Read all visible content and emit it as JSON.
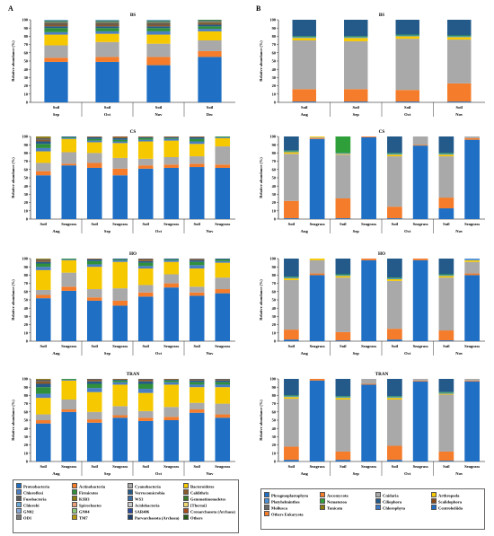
{
  "panel_letters": [
    "A",
    "B"
  ],
  "axis_ylabel": "Relative abundance (%)",
  "yticks": [
    0,
    10,
    20,
    30,
    40,
    50,
    60,
    70,
    80,
    90,
    100
  ],
  "colors_A": [
    "#1f6fc4",
    "#f47c2a",
    "#a9a9a9",
    "#f6c800",
    "#4a7fc4",
    "#2f8f3a",
    "#245a8a",
    "#8a5a2a",
    "#5a5a5a",
    "#8a7a10",
    "#3a6ea8",
    "#3a7a2a",
    "#6aa8d8",
    "#e9a07a",
    "#c8c8c8",
    "#f0d870",
    "#86a8d8",
    "#8cc878",
    "#2848a0",
    "#a84c1c",
    "#7a7a7a",
    "#b89810",
    "#1a4070",
    "#2a5a18"
  ],
  "colors_B": [
    "#1f6fc4",
    "#f47c2a",
    "#a9a9a9",
    "#f6c800",
    "#4a8fd8",
    "#2f9f3a",
    "#245a8a",
    "#8a4a1a",
    "#6a6a6a",
    "#8a7a10",
    "#3a78c8"
  ],
  "legend_A": {
    "items": [
      "Proteobacteria",
      "Actinobacteria",
      "Cyanobacteria",
      "Bacteroidetes",
      "Chloroflexi",
      "Firmicutes",
      "Verrucomicrobia",
      "Caldithrix",
      "Fusobacteria",
      "KSB3",
      "WS3",
      "Gemmatimonadetes",
      "Chlorobi",
      "Spirochaetes",
      "Acidobacteria",
      "[Thermi]",
      "GN02",
      "GN04",
      "SAR406",
      "Crenarchaeota (Archaea)",
      "OD1",
      "TM7",
      "Parvarchaeota (Archaea)",
      "Others"
    ]
  },
  "legend_B": {
    "items": [
      "Phragmoplastophyta",
      "Ascomycota",
      "Cnidaria",
      "Arthropoda",
      "Platyhelminthes",
      "Nematozoa",
      "Ciliophora",
      "Scalidophora",
      "Mollusca",
      "Tunicata",
      "Chlorophyta",
      "Centroheliida",
      "Others Eukaryota"
    ]
  },
  "chart_data": [
    {
      "panel": "A",
      "type": "bar",
      "stacked": true,
      "title": "BS",
      "ylabel": "Relative abundance (%)",
      "ylim": [
        0,
        100
      ],
      "categories": [
        "Soil",
        "Soil",
        "Soil",
        "Soil"
      ],
      "groups": [
        "Sep",
        "Oct",
        "Nov",
        "Dec"
      ],
      "segments": [
        [
          49,
          5,
          15,
          13,
          3,
          5,
          2,
          2,
          2,
          1,
          1,
          1,
          1
        ],
        [
          49,
          6,
          18,
          10,
          3,
          4,
          2,
          2,
          2,
          1,
          1,
          1,
          1
        ],
        [
          45,
          10,
          16,
          11,
          4,
          4,
          2,
          2,
          2,
          1,
          1,
          1,
          1
        ],
        [
          55,
          7,
          13,
          11,
          3,
          3,
          2,
          2,
          1,
          1,
          1,
          1
        ]
      ]
    },
    {
      "panel": "B",
      "type": "bar",
      "stacked": true,
      "title": "BS",
      "ylabel": "Relative abundance (%)",
      "ylim": [
        0,
        100
      ],
      "categories": [
        "Soil",
        "Soil",
        "Soil",
        "Soil"
      ],
      "groups": [
        "Aug",
        "Sep",
        "Oct",
        "Nov"
      ],
      "segments": [
        [
          1,
          15,
          59,
          3,
          1,
          1,
          20
        ],
        [
          1,
          15,
          58,
          4,
          1,
          1,
          20
        ],
        [
          1,
          14,
          62,
          3,
          1,
          1,
          18
        ],
        [
          1,
          22,
          53,
          3,
          1,
          1,
          19
        ]
      ]
    },
    {
      "panel": "A",
      "type": "bar",
      "stacked": true,
      "title": "CS",
      "ylabel": "Relative abundance (%)",
      "ylim": [
        0,
        100
      ],
      "categories": [
        "Soil",
        "Seagrass",
        "Soil",
        "Seagrass",
        "Soil",
        "Seagrass",
        "Soil",
        "Seagrass"
      ],
      "groups": [
        "Aug",
        "Sep",
        "Oct",
        "Nov"
      ],
      "segments": [
        [
          53,
          5,
          10,
          14,
          4,
          5,
          3,
          2,
          2,
          2
        ],
        [
          65,
          2,
          14,
          16,
          1,
          1,
          1
        ],
        [
          62,
          6,
          12,
          13,
          2,
          2,
          2,
          1
        ],
        [
          53,
          8,
          13,
          18,
          2,
          2,
          2,
          2
        ],
        [
          61,
          4,
          8,
          21,
          2,
          2,
          1,
          1
        ],
        [
          62,
          4,
          9,
          20,
          2,
          1,
          1,
          1
        ],
        [
          63,
          4,
          9,
          15,
          3,
          3,
          2,
          1
        ],
        [
          62,
          4,
          22,
          10,
          1,
          1
        ]
      ]
    },
    {
      "panel": "B",
      "type": "bar",
      "stacked": true,
      "title": "CS",
      "ylabel": "Relative abundance (%)",
      "ylim": [
        0,
        100
      ],
      "categories": [
        "Soil",
        "Seagrass",
        "Soil",
        "Seagrass",
        "Soil",
        "Seagrass",
        "Soil",
        "Seagrass"
      ],
      "groups": [
        "Aug",
        "Sep",
        "Oct",
        "Nov"
      ],
      "segments": [
        [
          1,
          21,
          57,
          2,
          1,
          1,
          17
        ],
        [
          97,
          1,
          1,
          1
        ],
        [
          1,
          24,
          53,
          1,
          1,
          20
        ],
        [
          99,
          1
        ],
        [
          1,
          14,
          61,
          2,
          1,
          1,
          20
        ],
        [
          89,
          1,
          10
        ],
        [
          13,
          13,
          50,
          2,
          1,
          1,
          20
        ],
        [
          96,
          2,
          2
        ]
      ]
    },
    {
      "panel": "A",
      "type": "bar",
      "stacked": true,
      "title": "HO",
      "ylabel": "Relative abundance (%)",
      "ylim": [
        0,
        100
      ],
      "categories": [
        "Soil",
        "Seagrass",
        "Soil",
        "Seagrass",
        "Soil",
        "Seagrass",
        "Soil",
        "Seagrass"
      ],
      "groups": [
        "Aug",
        "Sep",
        "Oct",
        "Nov"
      ],
      "segments": [
        [
          52,
          4,
          6,
          24,
          4,
          4,
          2,
          2,
          1,
          1
        ],
        [
          61,
          5,
          17,
          15,
          1,
          1
        ],
        [
          49,
          4,
          10,
          27,
          3,
          4,
          2,
          1
        ],
        [
          43,
          6,
          15,
          32,
          2,
          1,
          1
        ],
        [
          54,
          5,
          9,
          20,
          3,
          4,
          2,
          2,
          1
        ],
        [
          65,
          5,
          11,
          15,
          2,
          1,
          1
        ],
        [
          55,
          4,
          7,
          22,
          4,
          4,
          2,
          1,
          1
        ],
        [
          58,
          5,
          14,
          18,
          2,
          2,
          1
        ]
      ]
    },
    {
      "panel": "B",
      "type": "bar",
      "stacked": true,
      "title": "HO",
      "ylabel": "Relative abundance (%)",
      "ylim": [
        0,
        100
      ],
      "categories": [
        "Soil",
        "Seagrass",
        "Soil",
        "Seagrass",
        "Soil",
        "Seagrass",
        "Soil",
        "Seagrass"
      ],
      "groups": [
        "Aug",
        "Sep",
        "Oct",
        "Nov"
      ],
      "segments": [
        [
          2,
          12,
          60,
          2,
          1,
          1,
          22
        ],
        [
          80,
          2,
          16,
          2
        ],
        [
          1,
          10,
          66,
          2,
          1,
          1,
          19
        ],
        [
          98,
          2
        ],
        [
          2,
          13,
          58,
          2,
          1,
          1,
          23
        ],
        [
          98,
          2
        ],
        [
          1,
          12,
          64,
          2,
          1,
          1,
          19
        ],
        [
          80,
          2,
          14,
          2,
          2
        ]
      ]
    },
    {
      "panel": "A",
      "type": "bar",
      "stacked": true,
      "title": "TRAN",
      "ylabel": "Relative abundance (%)",
      "ylim": [
        0,
        100
      ],
      "categories": [
        "Soil",
        "Seagrass",
        "Soil",
        "Seagrass",
        "Soil",
        "Seagrass",
        "Soil",
        "Seagrass"
      ],
      "groups": [
        "Aug",
        "Sep",
        "Oct",
        "Nov"
      ],
      "segments": [
        [
          46,
          4,
          7,
          20,
          5,
          8,
          4,
          3,
          2,
          1
        ],
        [
          60,
          3,
          12,
          23,
          1,
          1
        ],
        [
          47,
          4,
          9,
          24,
          5,
          5,
          3,
          2,
          1
        ],
        [
          53,
          3,
          11,
          26,
          3,
          2,
          1,
          1
        ],
        [
          49,
          4,
          8,
          22,
          5,
          6,
          3,
          2,
          1
        ],
        [
          50,
          4,
          12,
          27,
          3,
          2,
          1,
          1
        ],
        [
          59,
          4,
          8,
          19,
          3,
          3,
          2,
          1,
          1
        ],
        [
          53,
          4,
          13,
          20,
          3,
          3,
          2,
          1,
          1
        ]
      ]
    },
    {
      "panel": "B",
      "type": "bar",
      "stacked": true,
      "title": "TRAN",
      "ylabel": "Relative abundance (%)",
      "ylim": [
        0,
        100
      ],
      "categories": [
        "Soil",
        "Seagrass",
        "Soil",
        "Seagrass",
        "Soil",
        "Seagrass",
        "Soil",
        "Seagrass"
      ],
      "groups": [
        "Aug",
        "Sep",
        "Oct",
        "Nov"
      ],
      "segments": [
        [
          2,
          16,
          58,
          2,
          1,
          1,
          20
        ],
        [
          98,
          2
        ],
        [
          2,
          10,
          63,
          2,
          1,
          1,
          21
        ],
        [
          93,
          1,
          6
        ],
        [
          2,
          17,
          56,
          2,
          1,
          1,
          21
        ],
        [
          97,
          1,
          2
        ],
        [
          1,
          11,
          69,
          1,
          1,
          1,
          16
        ],
        [
          97,
          1,
          2
        ]
      ]
    }
  ]
}
